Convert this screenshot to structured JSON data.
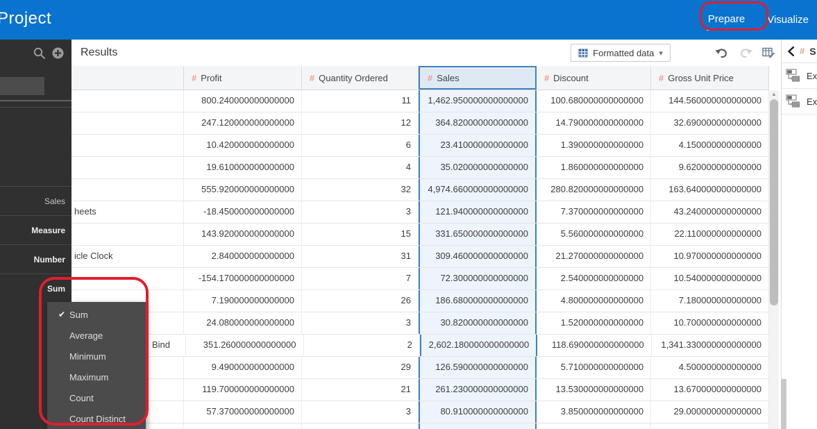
{
  "app": {
    "title": "Project",
    "tabs": [
      {
        "label": "Prepare",
        "active": true
      },
      {
        "label": "Visualize",
        "active": false
      }
    ]
  },
  "toolbar": {
    "results_label": "Results",
    "formatted_data_label": "Formatted data"
  },
  "icons": {
    "hash": "#",
    "caret_down": "▾",
    "check": "✔",
    "scroll_up": "▲"
  },
  "sidebar": {
    "properties": [
      {
        "value": "Sales"
      },
      {
        "value": "Measure"
      },
      {
        "value": "Number"
      },
      {
        "value": "Sum"
      }
    ]
  },
  "menu": {
    "items": [
      {
        "label": "Sum",
        "checked": true
      },
      {
        "label": "Average",
        "checked": false
      },
      {
        "label": "Minimum",
        "checked": false
      },
      {
        "label": "Maximum",
        "checked": false
      },
      {
        "label": "Count",
        "checked": false
      },
      {
        "label": "Count Distinct",
        "checked": false
      }
    ]
  },
  "table": {
    "columns": [
      "Profit",
      "Quantity Ordered",
      "Sales",
      "Discount",
      "Gross Unit Price"
    ],
    "selected_column": "Sales",
    "rows": [
      {
        "name": "",
        "profit": "800.240000000000000",
        "qty": "11",
        "sales": "1,462.950000000000000",
        "discount": "100.680000000000000",
        "gup": "144.560000000000000"
      },
      {
        "name": "",
        "profit": "247.120000000000000",
        "qty": "12",
        "sales": "364.820000000000000",
        "discount": "14.790000000000000",
        "gup": "32.690000000000000"
      },
      {
        "name": "",
        "profit": "10.420000000000000",
        "qty": "6",
        "sales": "23.410000000000000",
        "discount": "1.390000000000000",
        "gup": "4.150000000000000"
      },
      {
        "name": "",
        "profit": "19.610000000000000",
        "qty": "4",
        "sales": "35.020000000000000",
        "discount": "1.860000000000000",
        "gup": "9.620000000000000"
      },
      {
        "name": "",
        "profit": "555.920000000000000",
        "qty": "32",
        "sales": "4,974.660000000000000",
        "discount": "280.820000000000000",
        "gup": "163.640000000000000"
      },
      {
        "name": "heets",
        "profit": "-18.450000000000000",
        "qty": "3",
        "sales": "121.940000000000000",
        "discount": "7.370000000000000",
        "gup": "43.240000000000000"
      },
      {
        "name": "",
        "profit": "143.920000000000000",
        "qty": "15",
        "sales": "331.650000000000000",
        "discount": "5.560000000000000",
        "gup": "22.110000000000000"
      },
      {
        "name": "icle Clock",
        "profit": "2.840000000000000",
        "qty": "31",
        "sales": "309.460000000000000",
        "discount": "21.270000000000000",
        "gup": "10.970000000000000"
      },
      {
        "name": "",
        "profit": "-154.170000000000000",
        "qty": "7",
        "sales": "72.300000000000000",
        "discount": "2.540000000000000",
        "gup": "10.540000000000000"
      },
      {
        "name": "",
        "profit": "7.190000000000000",
        "qty": "26",
        "sales": "186.680000000000000",
        "discount": "4.800000000000000",
        "gup": "7.180000000000000"
      },
      {
        "name": "",
        "profit": "24.080000000000000",
        "qty": "3",
        "sales": "30.820000000000000",
        "discount": "1.520000000000000",
        "gup": "10.700000000000000"
      },
      {
        "name": "Bind",
        "profit": "351.260000000000000",
        "qty": "2",
        "sales": "2,602.180000000000000",
        "discount": "118.690000000000000",
        "gup": "1,341.330000000000000"
      },
      {
        "name": "",
        "profit": "9.490000000000000",
        "qty": "29",
        "sales": "126.590000000000000",
        "discount": "5.710000000000000",
        "gup": "4.500000000000000"
      },
      {
        "name": "",
        "profit": "119.700000000000000",
        "qty": "21",
        "sales": "261.230000000000000",
        "discount": "13.530000000000000",
        "gup": "13.670000000000000"
      },
      {
        "name": "",
        "profit": "57.370000000000000",
        "qty": "3",
        "sales": "80.910000000000000",
        "discount": "3.850000000000000",
        "gup": "29.000000000000000"
      }
    ]
  },
  "right_panel": {
    "title": "S",
    "items": [
      {
        "label": "Ex"
      },
      {
        "label": "Ex"
      }
    ]
  }
}
